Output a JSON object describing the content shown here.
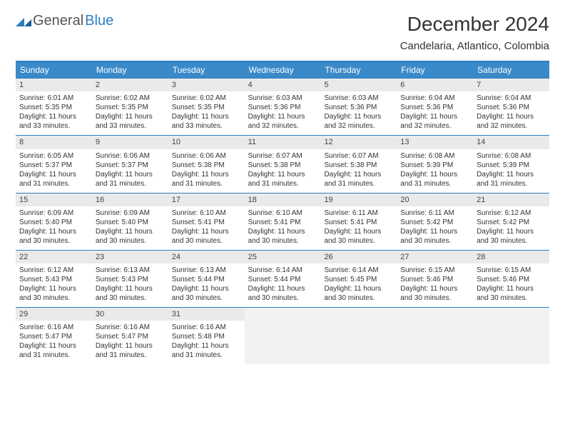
{
  "logo": {
    "part1": "General",
    "part2": "Blue"
  },
  "title": "December 2024",
  "location": "Candelaria, Atlantico, Colombia",
  "colors": {
    "header_bg": "#3a8ac9",
    "border": "#2d7dc0",
    "daynum_bg": "#eaeaea",
    "empty_bg": "#f2f2f2",
    "text": "#333333"
  },
  "dow": [
    "Sunday",
    "Monday",
    "Tuesday",
    "Wednesday",
    "Thursday",
    "Friday",
    "Saturday"
  ],
  "labels": {
    "sunrise": "Sunrise:",
    "sunset": "Sunset:",
    "daylight": "Daylight:"
  },
  "weeks": [
    [
      {
        "n": 1,
        "sr": "6:01 AM",
        "ss": "5:35 PM",
        "dl": "11 hours and 33 minutes."
      },
      {
        "n": 2,
        "sr": "6:02 AM",
        "ss": "5:35 PM",
        "dl": "11 hours and 33 minutes."
      },
      {
        "n": 3,
        "sr": "6:02 AM",
        "ss": "5:35 PM",
        "dl": "11 hours and 33 minutes."
      },
      {
        "n": 4,
        "sr": "6:03 AM",
        "ss": "5:36 PM",
        "dl": "11 hours and 32 minutes."
      },
      {
        "n": 5,
        "sr": "6:03 AM",
        "ss": "5:36 PM",
        "dl": "11 hours and 32 minutes."
      },
      {
        "n": 6,
        "sr": "6:04 AM",
        "ss": "5:36 PM",
        "dl": "11 hours and 32 minutes."
      },
      {
        "n": 7,
        "sr": "6:04 AM",
        "ss": "5:36 PM",
        "dl": "11 hours and 32 minutes."
      }
    ],
    [
      {
        "n": 8,
        "sr": "6:05 AM",
        "ss": "5:37 PM",
        "dl": "11 hours and 31 minutes."
      },
      {
        "n": 9,
        "sr": "6:06 AM",
        "ss": "5:37 PM",
        "dl": "11 hours and 31 minutes."
      },
      {
        "n": 10,
        "sr": "6:06 AM",
        "ss": "5:38 PM",
        "dl": "11 hours and 31 minutes."
      },
      {
        "n": 11,
        "sr": "6:07 AM",
        "ss": "5:38 PM",
        "dl": "11 hours and 31 minutes."
      },
      {
        "n": 12,
        "sr": "6:07 AM",
        "ss": "5:38 PM",
        "dl": "11 hours and 31 minutes."
      },
      {
        "n": 13,
        "sr": "6:08 AM",
        "ss": "5:39 PM",
        "dl": "11 hours and 31 minutes."
      },
      {
        "n": 14,
        "sr": "6:08 AM",
        "ss": "5:39 PM",
        "dl": "11 hours and 31 minutes."
      }
    ],
    [
      {
        "n": 15,
        "sr": "6:09 AM",
        "ss": "5:40 PM",
        "dl": "11 hours and 30 minutes."
      },
      {
        "n": 16,
        "sr": "6:09 AM",
        "ss": "5:40 PM",
        "dl": "11 hours and 30 minutes."
      },
      {
        "n": 17,
        "sr": "6:10 AM",
        "ss": "5:41 PM",
        "dl": "11 hours and 30 minutes."
      },
      {
        "n": 18,
        "sr": "6:10 AM",
        "ss": "5:41 PM",
        "dl": "11 hours and 30 minutes."
      },
      {
        "n": 19,
        "sr": "6:11 AM",
        "ss": "5:41 PM",
        "dl": "11 hours and 30 minutes."
      },
      {
        "n": 20,
        "sr": "6:11 AM",
        "ss": "5:42 PM",
        "dl": "11 hours and 30 minutes."
      },
      {
        "n": 21,
        "sr": "6:12 AM",
        "ss": "5:42 PM",
        "dl": "11 hours and 30 minutes."
      }
    ],
    [
      {
        "n": 22,
        "sr": "6:12 AM",
        "ss": "5:43 PM",
        "dl": "11 hours and 30 minutes."
      },
      {
        "n": 23,
        "sr": "6:13 AM",
        "ss": "5:43 PM",
        "dl": "11 hours and 30 minutes."
      },
      {
        "n": 24,
        "sr": "6:13 AM",
        "ss": "5:44 PM",
        "dl": "11 hours and 30 minutes."
      },
      {
        "n": 25,
        "sr": "6:14 AM",
        "ss": "5:44 PM",
        "dl": "11 hours and 30 minutes."
      },
      {
        "n": 26,
        "sr": "6:14 AM",
        "ss": "5:45 PM",
        "dl": "11 hours and 30 minutes."
      },
      {
        "n": 27,
        "sr": "6:15 AM",
        "ss": "5:46 PM",
        "dl": "11 hours and 30 minutes."
      },
      {
        "n": 28,
        "sr": "6:15 AM",
        "ss": "5:46 PM",
        "dl": "11 hours and 30 minutes."
      }
    ],
    [
      {
        "n": 29,
        "sr": "6:16 AM",
        "ss": "5:47 PM",
        "dl": "11 hours and 31 minutes."
      },
      {
        "n": 30,
        "sr": "6:16 AM",
        "ss": "5:47 PM",
        "dl": "11 hours and 31 minutes."
      },
      {
        "n": 31,
        "sr": "6:16 AM",
        "ss": "5:48 PM",
        "dl": "11 hours and 31 minutes."
      },
      null,
      null,
      null,
      null
    ]
  ]
}
